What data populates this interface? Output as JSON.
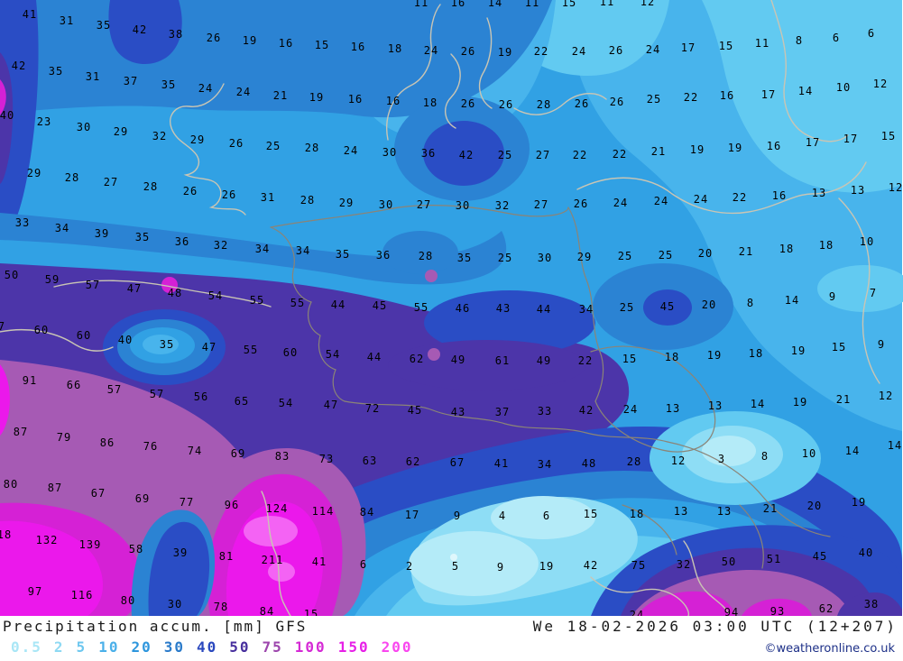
{
  "header": {
    "title": "Precipitation accum. [mm] GFS",
    "datetime": "We 18-02-2026 03:00 UTC (12+207)",
    "copyright": "©weatheronline.co.uk"
  },
  "legend": {
    "values": [
      {
        "label": "0.5",
        "color": "#a9e6f6"
      },
      {
        "label": "2",
        "color": "#8ed9f3"
      },
      {
        "label": "5",
        "color": "#6dc7ef"
      },
      {
        "label": "10",
        "color": "#4bb0e9"
      },
      {
        "label": "20",
        "color": "#2e96dd"
      },
      {
        "label": "30",
        "color": "#2b7bca"
      },
      {
        "label": "40",
        "color": "#2a48be"
      },
      {
        "label": "50",
        "color": "#472f9d"
      },
      {
        "label": "75",
        "color": "#9c45ac"
      },
      {
        "label": "100",
        "color": "#d52ad5"
      },
      {
        "label": "150",
        "color": "#e71fe7"
      },
      {
        "label": "200",
        "color": "#f947ef"
      }
    ]
  },
  "map": {
    "unit": "mm",
    "model": "GFS",
    "bands": [
      "#b4ebf8",
      "#8eddf5",
      "#62caf1",
      "#48b4ec",
      "#31a1e4",
      "#2b83d3",
      "#2a4dc5",
      "#4c35a9",
      "#a65ab4",
      "#d521d5",
      "#eb18eb",
      "#f463f4"
    ],
    "grid_values": [
      [
        467,
        3,
        "11"
      ],
      [
        508,
        3,
        "16"
      ],
      [
        549,
        3,
        "14"
      ],
      [
        590,
        3,
        "11"
      ],
      [
        631,
        3,
        "15"
      ],
      [
        673,
        2,
        "11"
      ],
      [
        718,
        2,
        "12"
      ],
      [
        33,
        16,
        "41"
      ],
      [
        74,
        23,
        "31"
      ],
      [
        115,
        28,
        "35"
      ],
      [
        155,
        33,
        "42"
      ],
      [
        195,
        38,
        "38"
      ],
      [
        237,
        42,
        "26"
      ],
      [
        277,
        45,
        "19"
      ],
      [
        317,
        48,
        "16"
      ],
      [
        357,
        50,
        "15"
      ],
      [
        397,
        52,
        "16"
      ],
      [
        438,
        54,
        "18"
      ],
      [
        478,
        56,
        "24"
      ],
      [
        519,
        57,
        "26"
      ],
      [
        560,
        58,
        "19"
      ],
      [
        600,
        57,
        "22"
      ],
      [
        642,
        57,
        "24"
      ],
      [
        683,
        56,
        "26"
      ],
      [
        724,
        55,
        "24"
      ],
      [
        763,
        53,
        "17"
      ],
      [
        805,
        51,
        "15"
      ],
      [
        845,
        48,
        "11"
      ],
      [
        886,
        45,
        "8"
      ],
      [
        927,
        42,
        "6"
      ],
      [
        966,
        37,
        "6"
      ],
      [
        21,
        73,
        "42"
      ],
      [
        62,
        79,
        "35"
      ],
      [
        103,
        85,
        "31"
      ],
      [
        145,
        90,
        "37"
      ],
      [
        187,
        94,
        "35"
      ],
      [
        228,
        98,
        "24"
      ],
      [
        270,
        102,
        "24"
      ],
      [
        311,
        106,
        "21"
      ],
      [
        351,
        108,
        "19"
      ],
      [
        394,
        110,
        "16"
      ],
      [
        436,
        112,
        "16"
      ],
      [
        477,
        114,
        "18"
      ],
      [
        519,
        115,
        "26"
      ],
      [
        561,
        116,
        "26"
      ],
      [
        603,
        116,
        "28"
      ],
      [
        645,
        115,
        "26"
      ],
      [
        684,
        113,
        "26"
      ],
      [
        725,
        110,
        "25"
      ],
      [
        766,
        108,
        "22"
      ],
      [
        806,
        106,
        "16"
      ],
      [
        852,
        105,
        "17"
      ],
      [
        893,
        101,
        "14"
      ],
      [
        935,
        97,
        "10"
      ],
      [
        976,
        93,
        "12"
      ],
      [
        8,
        128,
        "40"
      ],
      [
        49,
        135,
        "23"
      ],
      [
        93,
        141,
        "30"
      ],
      [
        134,
        146,
        "29"
      ],
      [
        177,
        151,
        "32"
      ],
      [
        219,
        155,
        "29"
      ],
      [
        262,
        159,
        "26"
      ],
      [
        303,
        162,
        "25"
      ],
      [
        346,
        164,
        "28"
      ],
      [
        389,
        167,
        "24"
      ],
      [
        432,
        169,
        "30"
      ],
      [
        475,
        170,
        "36"
      ],
      [
        517,
        172,
        "42"
      ],
      [
        560,
        172,
        "25"
      ],
      [
        602,
        172,
        "27"
      ],
      [
        643,
        172,
        "22"
      ],
      [
        687,
        171,
        "22"
      ],
      [
        730,
        168,
        "21"
      ],
      [
        773,
        166,
        "19"
      ],
      [
        815,
        164,
        "19"
      ],
      [
        858,
        162,
        "16"
      ],
      [
        901,
        158,
        "17"
      ],
      [
        943,
        154,
        "17"
      ],
      [
        985,
        151,
        "15"
      ],
      [
        38,
        192,
        "29"
      ],
      [
        80,
        197,
        "28"
      ],
      [
        123,
        202,
        "27"
      ],
      [
        167,
        207,
        "28"
      ],
      [
        211,
        212,
        "26"
      ],
      [
        254,
        216,
        "26"
      ],
      [
        297,
        219,
        "31"
      ],
      [
        341,
        222,
        "28"
      ],
      [
        384,
        225,
        "29"
      ],
      [
        428,
        227,
        "30"
      ],
      [
        470,
        227,
        "27"
      ],
      [
        513,
        228,
        "30"
      ],
      [
        557,
        228,
        "32"
      ],
      [
        600,
        227,
        "27"
      ],
      [
        644,
        226,
        "26"
      ],
      [
        688,
        225,
        "24"
      ],
      [
        733,
        223,
        "24"
      ],
      [
        777,
        221,
        "24"
      ],
      [
        820,
        219,
        "22"
      ],
      [
        864,
        217,
        "16"
      ],
      [
        908,
        214,
        "13"
      ],
      [
        951,
        211,
        "13"
      ],
      [
        993,
        208,
        "12"
      ],
      [
        25,
        247,
        "33"
      ],
      [
        69,
        253,
        "34"
      ],
      [
        113,
        259,
        "39"
      ],
      [
        158,
        263,
        "35"
      ],
      [
        202,
        268,
        "36"
      ],
      [
        245,
        272,
        "32"
      ],
      [
        291,
        276,
        "34"
      ],
      [
        336,
        278,
        "34"
      ],
      [
        380,
        282,
        "35"
      ],
      [
        425,
        283,
        "36"
      ],
      [
        472,
        284,
        "28"
      ],
      [
        515,
        286,
        "35"
      ],
      [
        560,
        286,
        "25"
      ],
      [
        604,
        286,
        "30"
      ],
      [
        648,
        285,
        "29"
      ],
      [
        693,
        284,
        "25"
      ],
      [
        738,
        283,
        "25"
      ],
      [
        782,
        281,
        "20"
      ],
      [
        827,
        279,
        "21"
      ],
      [
        872,
        276,
        "18"
      ],
      [
        916,
        272,
        "18"
      ],
      [
        961,
        268,
        "10"
      ],
      [
        13,
        305,
        "50"
      ],
      [
        58,
        310,
        "59"
      ],
      [
        103,
        316,
        "57"
      ],
      [
        149,
        320,
        "47"
      ],
      [
        194,
        325,
        "48"
      ],
      [
        239,
        328,
        "54"
      ],
      [
        285,
        333,
        "55"
      ],
      [
        330,
        336,
        "55"
      ],
      [
        375,
        338,
        "44"
      ],
      [
        421,
        339,
        "45"
      ],
      [
        467,
        341,
        "55"
      ],
      [
        513,
        342,
        "46"
      ],
      [
        558,
        342,
        "43"
      ],
      [
        603,
        343,
        "44"
      ],
      [
        650,
        343,
        "34"
      ],
      [
        695,
        341,
        "25"
      ],
      [
        740,
        340,
        "45"
      ],
      [
        786,
        338,
        "20"
      ],
      [
        832,
        336,
        "8"
      ],
      [
        878,
        333,
        "14"
      ],
      [
        923,
        329,
        "9"
      ],
      [
        968,
        325,
        "7"
      ],
      [
        2,
        362,
        "7"
      ],
      [
        46,
        366,
        "60"
      ],
      [
        93,
        372,
        "60"
      ],
      [
        139,
        377,
        "40"
      ],
      [
        185,
        382,
        "35"
      ],
      [
        232,
        385,
        "47"
      ],
      [
        278,
        388,
        "55"
      ],
      [
        322,
        391,
        "60"
      ],
      [
        369,
        393,
        "54"
      ],
      [
        415,
        396,
        "44"
      ],
      [
        462,
        398,
        "62"
      ],
      [
        508,
        399,
        "49"
      ],
      [
        557,
        400,
        "61"
      ],
      [
        603,
        400,
        "49"
      ],
      [
        649,
        400,
        "22"
      ],
      [
        698,
        398,
        "15"
      ],
      [
        745,
        396,
        "18"
      ],
      [
        792,
        394,
        "19"
      ],
      [
        838,
        392,
        "18"
      ],
      [
        885,
        389,
        "19"
      ],
      [
        930,
        385,
        "15"
      ],
      [
        977,
        382,
        "9"
      ],
      [
        33,
        422,
        "91"
      ],
      [
        82,
        427,
        "66"
      ],
      [
        127,
        432,
        "57"
      ],
      [
        174,
        437,
        "57"
      ],
      [
        223,
        440,
        "56"
      ],
      [
        268,
        445,
        "65"
      ],
      [
        317,
        447,
        "54"
      ],
      [
        367,
        449,
        "47"
      ],
      [
        413,
        453,
        "72"
      ],
      [
        460,
        455,
        "45"
      ],
      [
        508,
        457,
        "43"
      ],
      [
        557,
        457,
        "37"
      ],
      [
        604,
        456,
        "33"
      ],
      [
        650,
        455,
        "42"
      ],
      [
        699,
        454,
        "24"
      ],
      [
        746,
        453,
        "13"
      ],
      [
        793,
        450,
        "13"
      ],
      [
        840,
        448,
        "14"
      ],
      [
        887,
        446,
        "19"
      ],
      [
        935,
        443,
        "21"
      ],
      [
        982,
        439,
        "12"
      ],
      [
        23,
        479,
        "87"
      ],
      [
        71,
        485,
        "79"
      ],
      [
        119,
        491,
        "86"
      ],
      [
        167,
        495,
        "76"
      ],
      [
        216,
        500,
        "74"
      ],
      [
        264,
        503,
        "69"
      ],
      [
        313,
        506,
        "83"
      ],
      [
        362,
        509,
        "73"
      ],
      [
        410,
        511,
        "63"
      ],
      [
        458,
        512,
        "62"
      ],
      [
        507,
        513,
        "67"
      ],
      [
        556,
        514,
        "41"
      ],
      [
        604,
        515,
        "34"
      ],
      [
        653,
        514,
        "48"
      ],
      [
        703,
        512,
        "28"
      ],
      [
        752,
        511,
        "12"
      ],
      [
        800,
        509,
        "3"
      ],
      [
        848,
        506,
        "8"
      ],
      [
        897,
        503,
        "10"
      ],
      [
        945,
        500,
        "14"
      ],
      [
        992,
        494,
        "14"
      ],
      [
        12,
        537,
        "80"
      ],
      [
        61,
        541,
        "87"
      ],
      [
        109,
        547,
        "67"
      ],
      [
        158,
        553,
        "69"
      ],
      [
        207,
        557,
        "77"
      ],
      [
        257,
        560,
        "96"
      ],
      [
        307,
        564,
        "124"
      ],
      [
        358,
        567,
        "114"
      ],
      [
        407,
        568,
        "84"
      ],
      [
        457,
        571,
        "17"
      ],
      [
        507,
        572,
        "9"
      ],
      [
        557,
        572,
        "4"
      ],
      [
        606,
        572,
        "6"
      ],
      [
        655,
        570,
        "15"
      ],
      [
        706,
        570,
        "18"
      ],
      [
        755,
        567,
        "13"
      ],
      [
        803,
        567,
        "13"
      ],
      [
        854,
        564,
        "21"
      ],
      [
        903,
        561,
        "20"
      ],
      [
        952,
        557,
        "19"
      ],
      [
        5,
        593,
        "18"
      ],
      [
        52,
        599,
        "132"
      ],
      [
        100,
        604,
        "139"
      ],
      [
        151,
        609,
        "58"
      ],
      [
        200,
        613,
        "39"
      ],
      [
        251,
        617,
        "81"
      ],
      [
        302,
        621,
        "211"
      ],
      [
        354,
        623,
        "41"
      ],
      [
        403,
        626,
        "6"
      ],
      [
        454,
        628,
        "2"
      ],
      [
        505,
        628,
        "5"
      ],
      [
        555,
        629,
        "9"
      ],
      [
        606,
        628,
        "19"
      ],
      [
        655,
        627,
        "42"
      ],
      [
        708,
        627,
        "75"
      ],
      [
        758,
        626,
        "32"
      ],
      [
        808,
        623,
        "50"
      ],
      [
        858,
        620,
        "51"
      ],
      [
        909,
        617,
        "45"
      ],
      [
        960,
        613,
        "40"
      ],
      [
        39,
        656,
        "97"
      ],
      [
        91,
        660,
        "116"
      ],
      [
        142,
        666,
        "80"
      ],
      [
        194,
        670,
        "30"
      ],
      [
        245,
        673,
        "78"
      ],
      [
        296,
        678,
        "84"
      ],
      [
        345,
        681,
        "15"
      ],
      [
        706,
        682,
        "24"
      ],
      [
        811,
        679,
        "94"
      ],
      [
        862,
        678,
        "93"
      ],
      [
        916,
        675,
        "62"
      ],
      [
        966,
        670,
        "38"
      ]
    ]
  }
}
